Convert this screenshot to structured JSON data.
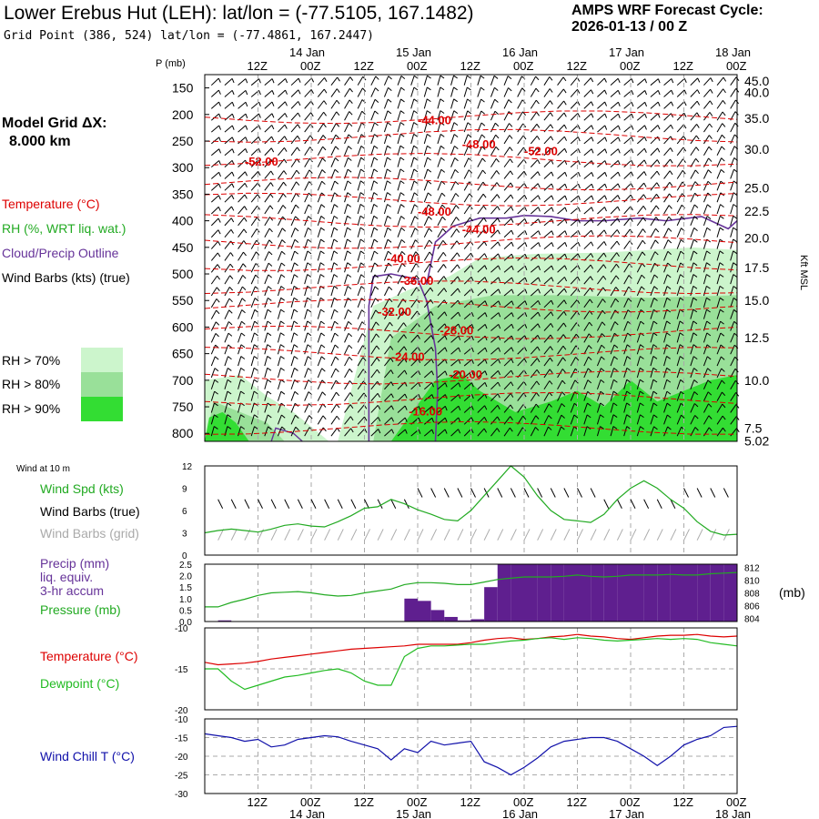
{
  "header": {
    "title": "Lower Erebus Hut (LEH):  lat/lon = (-77.5105, 167.1482)",
    "cycle_line1": "AMPS WRF Forecast Cycle:",
    "cycle_line2": "2026-01-13 / 00  Z",
    "grid_point": "Grid Point (386, 524) lat/lon = (-77.4861, 167.2447)"
  },
  "left_panel": {
    "model_grid_label": "Model Grid ΔX:",
    "model_grid_value": "8.000 km",
    "temperature": "Temperature (°C)",
    "rh": "RH (%, WRT liq. wat.)",
    "cloud": "Cloud/Precip Outline",
    "wind_barbs": "Wind Barbs (kts) (true)",
    "rh70": "RH > 70%",
    "rh80": "RH > 80%",
    "rh90": "RH > 90%"
  },
  "colors": {
    "temp": "#dd0000",
    "rh": "#22aa22",
    "cloud": "#663399",
    "rh70": "#ccf5cc",
    "rh80": "#99e099",
    "rh90": "#33dd33",
    "dewpoint": "#22bb22",
    "windchill": "#1111aa",
    "precip": "#5f1f8f",
    "barb_grid": "#aaaaaa"
  },
  "time_axis": {
    "top_row": [
      "12Z",
      "00Z",
      "12Z",
      "00Z",
      "12Z",
      "00Z",
      "12Z",
      "00Z",
      "12Z",
      "00Z"
    ],
    "date_labels": [
      "14 Jan",
      "15 Jan",
      "16 Jan",
      "17 Jan",
      "18 Jan"
    ],
    "hours": [
      12,
      24,
      36,
      48,
      60,
      72,
      84,
      96,
      108,
      120
    ]
  },
  "chart_data": [
    {
      "type": "line",
      "name": "vertical-cross-section",
      "ylabel_left": "P (mb)",
      "ylabel_right": "Kft MSL",
      "pressure_ticks": [
        150,
        200,
        250,
        300,
        350,
        400,
        450,
        500,
        550,
        600,
        650,
        700,
        750,
        800
      ],
      "height_ticks": [
        "45.0",
        "40.0",
        "35.0",
        "30.0",
        "25.0",
        "22.5",
        "20.0",
        "17.5",
        "15.0",
        "12.5",
        "10.0",
        "7.5",
        "5.02"
      ],
      "height_tick_pressures": [
        137,
        158,
        207,
        265,
        338,
        382,
        432,
        488,
        550,
        620,
        700,
        790,
        814
      ],
      "temp_labels": [
        {
          "text": "-44.00",
          "t": 48,
          "p": 210
        },
        {
          "text": "-48.00",
          "t": 58,
          "p": 255
        },
        {
          "text": "-52.00",
          "t": 72,
          "p": 268
        },
        {
          "text": "-52.00",
          "t": 9,
          "p": 288
        },
        {
          "text": "-48.00",
          "t": 48,
          "p": 382
        },
        {
          "text": "-44.00",
          "t": 58,
          "p": 415
        },
        {
          "text": "-40.00",
          "t": 41,
          "p": 470
        },
        {
          "text": "-36.00",
          "t": 44,
          "p": 512
        },
        {
          "text": "-32.00",
          "t": 39,
          "p": 570
        },
        {
          "text": "-28.00",
          "t": 53,
          "p": 605
        },
        {
          "text": "-24.00",
          "t": 42,
          "p": 655
        },
        {
          "text": "-20.00",
          "t": 55,
          "p": 688
        },
        {
          "text": "-16.00",
          "t": 46,
          "p": 758
        }
      ]
    },
    {
      "type": "line",
      "name": "wind-speed",
      "title": "Wind at 10 m",
      "series_label": "Wind Spd (kts)",
      "barbs_true_label": "Wind Barbs (true)",
      "barbs_grid_label": "Wind Barbs (grid)",
      "ylim": [
        0,
        12
      ],
      "yticks": [
        0,
        3,
        6,
        9,
        12
      ],
      "x": [
        0,
        3,
        6,
        9,
        12,
        15,
        18,
        21,
        24,
        27,
        30,
        33,
        36,
        39,
        42,
        45,
        48,
        51,
        54,
        57,
        60,
        63,
        66,
        69,
        72,
        75,
        78,
        81,
        84,
        87,
        90,
        93,
        96,
        99,
        102,
        105,
        108,
        111,
        114,
        117,
        120
      ],
      "values": [
        3,
        3.3,
        3.5,
        3.3,
        3.1,
        3.5,
        4,
        4.2,
        3.9,
        3.8,
        4.5,
        5.3,
        6.3,
        6.5,
        7.5,
        6.9,
        6.1,
        5.5,
        4.8,
        4.6,
        6,
        8,
        10,
        12,
        10.5,
        8,
        6,
        4.8,
        4.6,
        4.4,
        5.5,
        7.5,
        9,
        10,
        9,
        7.5,
        6.3,
        4.5,
        3.2,
        2.7,
        2.8
      ]
    },
    {
      "type": "bar",
      "name": "precip-pressure",
      "precip_label_1": "Precip (mm)",
      "precip_label_2": "liq. equiv.",
      "precip_label_3": "3-hr accum",
      "pressure_label": "Pressure (mb)",
      "right_unit": "(mb)",
      "ylim": [
        0,
        2.5
      ],
      "yticks": [
        "0.0",
        "0.5",
        "1.0",
        "1.5",
        "2.0",
        "2.5"
      ],
      "pressure_ticks": [
        804,
        806,
        808,
        810,
        812
      ],
      "precip_x": [
        0,
        3,
        6,
        9,
        12,
        15,
        18,
        21,
        24,
        27,
        30,
        33,
        36,
        39,
        42,
        45,
        48,
        51,
        54,
        57,
        60,
        63,
        66,
        69,
        72,
        75,
        78,
        81,
        84,
        87,
        90,
        93,
        96,
        99,
        102,
        105,
        108,
        111,
        114,
        117
      ],
      "precip": [
        0,
        0.05,
        0,
        0,
        0,
        0,
        0,
        0,
        0,
        0,
        0,
        0,
        0,
        0,
        0,
        1.0,
        0.9,
        0.5,
        0.2,
        0.05,
        0.1,
        1.5,
        2.6,
        2.6,
        2.6,
        2.6,
        2.6,
        2.6,
        2.6,
        2.6,
        2.6,
        2.6,
        2.6,
        2.6,
        2.6,
        2.6,
        2.6,
        2.6,
        2.6,
        2.6
      ],
      "pressure_x": [
        0,
        3,
        6,
        9,
        12,
        15,
        18,
        21,
        24,
        27,
        30,
        33,
        36,
        39,
        42,
        45,
        48,
        51,
        54,
        57,
        60,
        63,
        66,
        69,
        72,
        75,
        78,
        81,
        84,
        87,
        90,
        93,
        96,
        99,
        102,
        105,
        108,
        111,
        114,
        117,
        120
      ],
      "pressure": [
        805.8,
        805.8,
        806.5,
        807,
        807.6,
        808,
        808.1,
        808.2,
        808,
        807.7,
        807.5,
        807.6,
        808,
        808.3,
        808.6,
        809.3,
        809.6,
        809.6,
        809.5,
        809.3,
        809.3,
        809.7,
        810.1,
        810.3,
        810.5,
        810.5,
        810.5,
        810.6,
        810.8,
        810.6,
        810.5,
        810.6,
        810.8,
        810.8,
        810.8,
        810.9,
        810.8,
        810.8,
        811,
        811.1,
        811.2
      ]
    },
    {
      "type": "line",
      "name": "temp-dewpoint",
      "temp_label": "Temperature (°C)",
      "dew_label": "Dewpoint (°C)",
      "ylim": [
        -20,
        -10
      ],
      "yticks": [
        "-10",
        "-15",
        "-20"
      ],
      "x": [
        0,
        3,
        6,
        9,
        12,
        15,
        18,
        21,
        24,
        27,
        30,
        33,
        36,
        39,
        42,
        45,
        48,
        51,
        54,
        57,
        60,
        63,
        66,
        69,
        72,
        75,
        78,
        81,
        84,
        87,
        90,
        93,
        96,
        99,
        102,
        105,
        108,
        111,
        114,
        117,
        120
      ],
      "temperature": [
        -14.2,
        -14.5,
        -14.4,
        -14.3,
        -14.1,
        -13.8,
        -13.6,
        -13.4,
        -13.2,
        -13,
        -12.8,
        -12.6,
        -12.5,
        -12.4,
        -12.3,
        -12.2,
        -12,
        -12,
        -12,
        -12,
        -11.8,
        -11.5,
        -11.3,
        -11.2,
        -11.4,
        -11.3,
        -11.1,
        -11,
        -10.8,
        -11,
        -11.1,
        -11.3,
        -11.4,
        -11.2,
        -11,
        -10.9,
        -10.9,
        -10.8,
        -11,
        -11.1,
        -11
      ],
      "dewpoint": [
        -15,
        -15,
        -16.5,
        -17.5,
        -17,
        -16.5,
        -16,
        -15.8,
        -15.5,
        -15.2,
        -15,
        -15.5,
        -16.5,
        -17,
        -17,
        -13.5,
        -12.5,
        -12.2,
        -12.2,
        -12.1,
        -12,
        -12,
        -11.8,
        -11.6,
        -11.5,
        -11.3,
        -11.2,
        -11.4,
        -11.2,
        -11.3,
        -11.5,
        -11.6,
        -11.5,
        -11.4,
        -11.3,
        -11.4,
        -11.3,
        -11.4,
        -11.8,
        -12,
        -12.2
      ]
    },
    {
      "type": "line",
      "name": "wind-chill",
      "series_label": "Wind Chill T (°C)",
      "ylim": [
        -30,
        -10
      ],
      "yticks": [
        "-10",
        "-15",
        "-20",
        "-25",
        "-30"
      ],
      "x": [
        0,
        3,
        6,
        9,
        12,
        15,
        18,
        21,
        24,
        27,
        30,
        33,
        36,
        39,
        42,
        45,
        48,
        51,
        54,
        57,
        60,
        63,
        66,
        69,
        72,
        75,
        78,
        81,
        84,
        87,
        90,
        93,
        96,
        99,
        102,
        105,
        108,
        111,
        114,
        117,
        120
      ],
      "values": [
        -14,
        -14.5,
        -15,
        -16,
        -15.5,
        -17.5,
        -17,
        -15.5,
        -15,
        -14.5,
        -14.8,
        -16,
        -17,
        -18,
        -21,
        -18,
        -19,
        -16,
        -17,
        -16.5,
        -16,
        -21.5,
        -23,
        -25,
        -23,
        -20.5,
        -17.5,
        -16,
        -15.5,
        -15,
        -15,
        -16,
        -18,
        -20,
        -22.5,
        -20,
        -17,
        -15.5,
        -14.5,
        -12.3,
        -12
      ]
    }
  ]
}
